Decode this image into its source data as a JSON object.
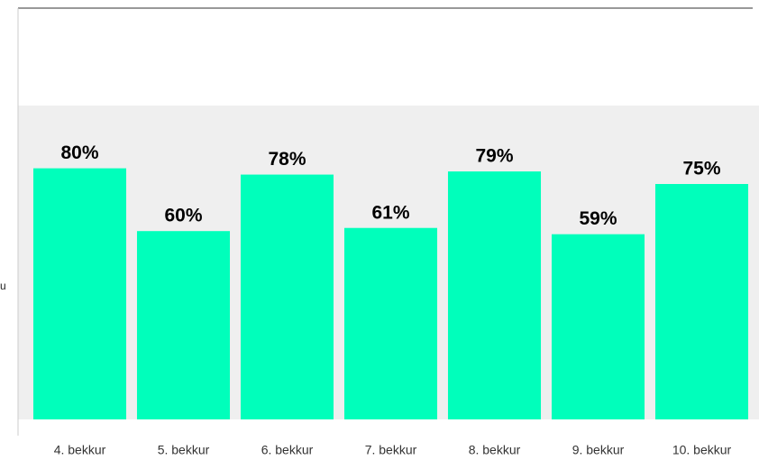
{
  "chart_data": {
    "type": "bar",
    "y_label": "u",
    "categories": [
      "4. bekkur",
      "5. bekkur",
      "6. bekkur",
      "7. bekkur",
      "8. bekkur",
      "9. bekkur",
      "10. bekkur"
    ],
    "values": [
      80,
      60,
      78,
      61,
      79,
      59,
      75
    ],
    "value_labels": [
      "80%",
      "60%",
      "78%",
      "61%",
      "79%",
      "59%",
      "75%"
    ],
    "color": "#00ffbb",
    "ylim": [
      0,
      100
    ]
  }
}
